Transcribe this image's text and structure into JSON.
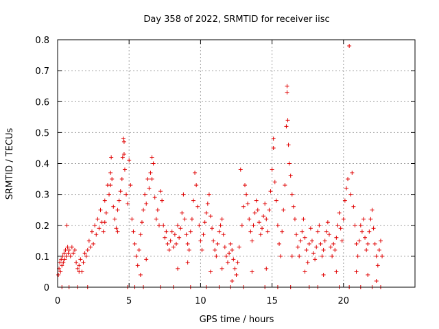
{
  "chart_data": {
    "type": "scatter",
    "title": "Day 358 of 2022, SRMTID for receiver iisc",
    "xlabel": "GPS time / hours",
    "ylabel": "SRMTID / TECUs",
    "xlim": [
      0,
      25
    ],
    "ylim": [
      0,
      0.8
    ],
    "x_ticks": [
      0,
      5,
      10,
      15,
      20
    ],
    "y_ticks": [
      0,
      0.1,
      0.2,
      0.3,
      0.4,
      0.5,
      0.6,
      0.7,
      0.8
    ],
    "x_tick_labels": [
      "0",
      "5",
      "10",
      "15",
      "20"
    ],
    "y_tick_labels": [
      "0",
      "0.1",
      "0.2",
      "0.3",
      "0.4",
      "0.5",
      "0.6",
      "0.7",
      "0.8"
    ],
    "grid": true,
    "marker": "+",
    "color": "#e00000",
    "series": [
      {
        "name": "SRMTID",
        "points": [
          [
            0.05,
            0.04
          ],
          [
            0.1,
            0.06
          ],
          [
            0.15,
            0.08
          ],
          [
            0.2,
            0.05
          ],
          [
            0.25,
            0.09
          ],
          [
            0.3,
            0.07
          ],
          [
            0.35,
            0.1
          ],
          [
            0.4,
            0.08
          ],
          [
            0.45,
            0.11
          ],
          [
            0.5,
            0.09
          ],
          [
            0.55,
            0.12
          ],
          [
            0.6,
            0.1
          ],
          [
            0.65,
            0.2
          ],
          [
            0.7,
            0.13
          ],
          [
            0.75,
            0.11
          ],
          [
            0.8,
            0.12
          ],
          [
            0.9,
            0.1
          ],
          [
            1.0,
            0.13
          ],
          [
            1.1,
            0.11
          ],
          [
            1.2,
            0.12
          ],
          [
            1.3,
            0.08
          ],
          [
            1.4,
            0.06
          ],
          [
            1.5,
            0.07
          ],
          [
            1.6,
            0.09
          ],
          [
            1.7,
            0.05
          ],
          [
            1.8,
            0.08
          ],
          [
            1.9,
            0.11
          ],
          [
            2.0,
            0.1
          ],
          [
            2.1,
            0.12
          ],
          [
            2.2,
            0.15
          ],
          [
            2.3,
            0.13
          ],
          [
            2.4,
            0.18
          ],
          [
            2.5,
            0.14
          ],
          [
            2.6,
            0.2
          ],
          [
            2.7,
            0.17
          ],
          [
            2.8,
            0.22
          ],
          [
            2.9,
            0.19
          ],
          [
            3.0,
            0.25
          ],
          [
            3.1,
            0.21
          ],
          [
            3.2,
            0.18
          ],
          [
            3.3,
            0.28
          ],
          [
            3.4,
            0.24
          ],
          [
            3.5,
            0.33
          ],
          [
            3.6,
            0.3
          ],
          [
            3.7,
            0.37
          ],
          [
            3.75,
            0.42
          ],
          [
            3.8,
            0.35
          ],
          [
            3.9,
            0.26
          ],
          [
            4.0,
            0.22
          ],
          [
            4.1,
            0.19
          ],
          [
            4.2,
            0.25
          ],
          [
            4.3,
            0.28
          ],
          [
            4.4,
            0.31
          ],
          [
            4.5,
            0.35
          ],
          [
            4.55,
            0.42
          ],
          [
            4.6,
            0.48
          ],
          [
            4.65,
            0.47
          ],
          [
            4.7,
            0.38
          ],
          [
            4.8,
            0.3
          ],
          [
            4.9,
            0.27
          ],
          [
            5.0,
            0.41
          ],
          [
            5.1,
            0.33
          ],
          [
            5.2,
            0.22
          ],
          [
            5.3,
            0.18
          ],
          [
            5.4,
            0.14
          ],
          [
            5.5,
            0.1
          ],
          [
            5.6,
            0.07
          ],
          [
            5.7,
            0.12
          ],
          [
            5.8,
            0.17
          ],
          [
            5.9,
            0.21
          ],
          [
            6.0,
            0.25
          ],
          [
            6.1,
            0.3
          ],
          [
            6.2,
            0.27
          ],
          [
            6.3,
            0.35
          ],
          [
            6.4,
            0.32
          ],
          [
            6.5,
            0.37
          ],
          [
            6.6,
            0.42
          ],
          [
            6.7,
            0.4
          ],
          [
            6.8,
            0.29
          ],
          [
            6.9,
            0.22
          ],
          [
            7.0,
            0.25
          ],
          [
            7.1,
            0.2
          ],
          [
            7.2,
            0.31
          ],
          [
            7.3,
            0.28
          ],
          [
            7.4,
            0.2
          ],
          [
            7.5,
            0.16
          ],
          [
            7.6,
            0.18
          ],
          [
            7.7,
            0.14
          ],
          [
            7.8,
            0.12
          ],
          [
            7.9,
            0.15
          ],
          [
            8.0,
            0.18
          ],
          [
            8.1,
            0.13
          ],
          [
            8.2,
            0.17
          ],
          [
            8.3,
            0.14
          ],
          [
            8.4,
            0.2
          ],
          [
            8.5,
            0.16
          ],
          [
            8.6,
            0.19
          ],
          [
            8.7,
            0.24
          ],
          [
            8.8,
            0.3
          ],
          [
            8.9,
            0.22
          ],
          [
            9.0,
            0.17
          ],
          [
            9.1,
            0.14
          ],
          [
            9.2,
            0.12
          ],
          [
            9.3,
            0.18
          ],
          [
            9.4,
            0.22
          ],
          [
            9.5,
            0.28
          ],
          [
            9.6,
            0.37
          ],
          [
            9.7,
            0.33
          ],
          [
            9.8,
            0.26
          ],
          [
            9.9,
            0.2
          ],
          [
            10.0,
            0.15
          ],
          [
            10.1,
            0.12
          ],
          [
            10.2,
            0.17
          ],
          [
            10.3,
            0.21
          ],
          [
            10.4,
            0.24
          ],
          [
            10.5,
            0.27
          ],
          [
            10.6,
            0.3
          ],
          [
            10.7,
            0.23
          ],
          [
            10.8,
            0.19
          ],
          [
            10.9,
            0.15
          ],
          [
            11.0,
            0.12
          ],
          [
            11.1,
            0.1
          ],
          [
            11.2,
            0.14
          ],
          [
            11.3,
            0.18
          ],
          [
            11.4,
            0.2
          ],
          [
            11.5,
            0.22
          ],
          [
            11.6,
            0.17
          ],
          [
            11.7,
            0.13
          ],
          [
            11.8,
            0.1
          ],
          [
            11.9,
            0.08
          ],
          [
            12.0,
            0.11
          ],
          [
            12.1,
            0.14
          ],
          [
            12.2,
            0.12
          ],
          [
            12.3,
            0.09
          ],
          [
            12.4,
            0.06
          ],
          [
            12.5,
            0.04
          ],
          [
            12.6,
            0.08
          ],
          [
            12.7,
            0.13
          ],
          [
            12.8,
            0.38
          ],
          [
            12.9,
            0.2
          ],
          [
            13.0,
            0.26
          ],
          [
            13.1,
            0.33
          ],
          [
            13.2,
            0.3
          ],
          [
            13.3,
            0.27
          ],
          [
            13.4,
            0.22
          ],
          [
            13.5,
            0.18
          ],
          [
            13.6,
            0.15
          ],
          [
            13.7,
            0.2
          ],
          [
            13.8,
            0.24
          ],
          [
            13.9,
            0.28
          ],
          [
            14.0,
            0.25
          ],
          [
            14.1,
            0.21
          ],
          [
            14.2,
            0.17
          ],
          [
            14.3,
            0.19
          ],
          [
            14.4,
            0.23
          ],
          [
            14.5,
            0.27
          ],
          [
            14.6,
            0.22
          ],
          [
            14.7,
            0.18
          ],
          [
            14.8,
            0.25
          ],
          [
            14.9,
            0.31
          ],
          [
            15.0,
            0.38
          ],
          [
            15.1,
            0.48
          ],
          [
            15.2,
            0.34
          ],
          [
            15.3,
            0.28
          ],
          [
            15.4,
            0.2
          ],
          [
            15.5,
            0.14
          ],
          [
            15.6,
            0.1
          ],
          [
            15.7,
            0.18
          ],
          [
            15.8,
            0.25
          ],
          [
            15.9,
            0.33
          ],
          [
            16.0,
            0.52
          ],
          [
            16.05,
            0.65
          ],
          [
            16.1,
            0.54
          ],
          [
            16.15,
            0.46
          ],
          [
            16.2,
            0.4
          ],
          [
            16.3,
            0.36
          ],
          [
            16.4,
            0.3
          ],
          [
            16.5,
            0.26
          ],
          [
            16.6,
            0.22
          ],
          [
            16.7,
            0.17
          ],
          [
            16.8,
            0.13
          ],
          [
            16.9,
            0.1
          ],
          [
            17.0,
            0.15
          ],
          [
            17.1,
            0.18
          ],
          [
            17.2,
            0.22
          ],
          [
            17.3,
            0.16
          ],
          [
            17.4,
            0.12
          ],
          [
            17.5,
            0.08
          ],
          [
            17.6,
            0.14
          ],
          [
            17.7,
            0.19
          ],
          [
            17.8,
            0.15
          ],
          [
            17.9,
            0.11
          ],
          [
            18.0,
            0.09
          ],
          [
            18.1,
            0.13
          ],
          [
            18.2,
            0.18
          ],
          [
            18.3,
            0.2
          ],
          [
            18.4,
            0.14
          ],
          [
            18.5,
            0.1
          ],
          [
            18.6,
            0.12
          ],
          [
            18.7,
            0.15
          ],
          [
            18.8,
            0.18
          ],
          [
            18.9,
            0.21
          ],
          [
            19.0,
            0.17
          ],
          [
            19.1,
            0.13
          ],
          [
            19.2,
            0.1
          ],
          [
            19.3,
            0.14
          ],
          [
            19.4,
            0.12
          ],
          [
            19.5,
            0.16
          ],
          [
            19.6,
            0.2
          ],
          [
            19.7,
            0.24
          ],
          [
            19.8,
            0.19
          ],
          [
            19.9,
            0.15
          ],
          [
            20.0,
            0.22
          ],
          [
            20.1,
            0.28
          ],
          [
            20.2,
            0.32
          ],
          [
            20.3,
            0.35
          ],
          [
            20.4,
            0.78
          ],
          [
            20.5,
            0.3
          ],
          [
            20.6,
            0.37
          ],
          [
            20.7,
            0.26
          ],
          [
            20.8,
            0.2
          ],
          [
            20.9,
            0.14
          ],
          [
            21.0,
            0.1
          ],
          [
            21.1,
            0.15
          ],
          [
            21.2,
            0.2
          ],
          [
            21.3,
            0.18
          ],
          [
            21.4,
            0.22
          ],
          [
            21.5,
            0.16
          ],
          [
            21.6,
            0.12
          ],
          [
            21.7,
            0.14
          ],
          [
            21.8,
            0.18
          ],
          [
            21.9,
            0.22
          ],
          [
            22.0,
            0.25
          ],
          [
            22.1,
            0.19
          ],
          [
            22.2,
            0.14
          ],
          [
            22.3,
            0.1
          ],
          [
            22.4,
            0.07
          ],
          [
            22.5,
            0.12
          ],
          [
            22.6,
            0.15
          ],
          [
            22.7,
            0.1
          ],
          [
            1.5,
            0.05
          ],
          [
            3.3,
            0.21
          ],
          [
            4.2,
            0.18
          ],
          [
            5.8,
            0.04
          ],
          [
            6.2,
            0.09
          ],
          [
            8.4,
            0.06
          ],
          [
            9.1,
            0.08
          ],
          [
            10.7,
            0.05
          ],
          [
            11.5,
            0.06
          ],
          [
            12.2,
            0.02
          ],
          [
            13.6,
            0.05
          ],
          [
            14.6,
            0.06
          ],
          [
            16.4,
            0.1
          ],
          [
            17.3,
            0.05
          ],
          [
            18.6,
            0.04
          ],
          [
            19.5,
            0.05
          ],
          [
            20.9,
            0.05
          ],
          [
            21.7,
            0.04
          ],
          [
            22.3,
            0.02
          ],
          [
            4.65,
            0.43
          ],
          [
            6.6,
            0.35
          ],
          [
            3.7,
            0.33
          ],
          [
            16.05,
            0.63
          ],
          [
            15.1,
            0.45
          ],
          [
            0.3,
            0.0
          ],
          [
            0.8,
            0.0
          ],
          [
            1.4,
            0.0
          ],
          [
            2.1,
            0.0
          ],
          [
            4.9,
            0.0
          ],
          [
            5.4,
            0.0
          ],
          [
            6.0,
            0.0
          ],
          [
            7.2,
            0.0
          ],
          [
            8.1,
            0.0
          ],
          [
            9.3,
            0.0
          ],
          [
            10.4,
            0.0
          ],
          [
            11.3,
            0.0
          ],
          [
            12.1,
            0.0
          ],
          [
            13.0,
            0.0
          ],
          [
            14.5,
            0.0
          ],
          [
            15.4,
            0.0
          ],
          [
            16.3,
            0.0
          ],
          [
            17.6,
            0.0
          ],
          [
            18.2,
            0.0
          ],
          [
            19.7,
            0.0
          ],
          [
            20.4,
            0.0
          ],
          [
            21.2,
            0.0
          ],
          [
            22.0,
            0.0
          ],
          [
            22.6,
            0.0
          ]
        ]
      }
    ]
  }
}
